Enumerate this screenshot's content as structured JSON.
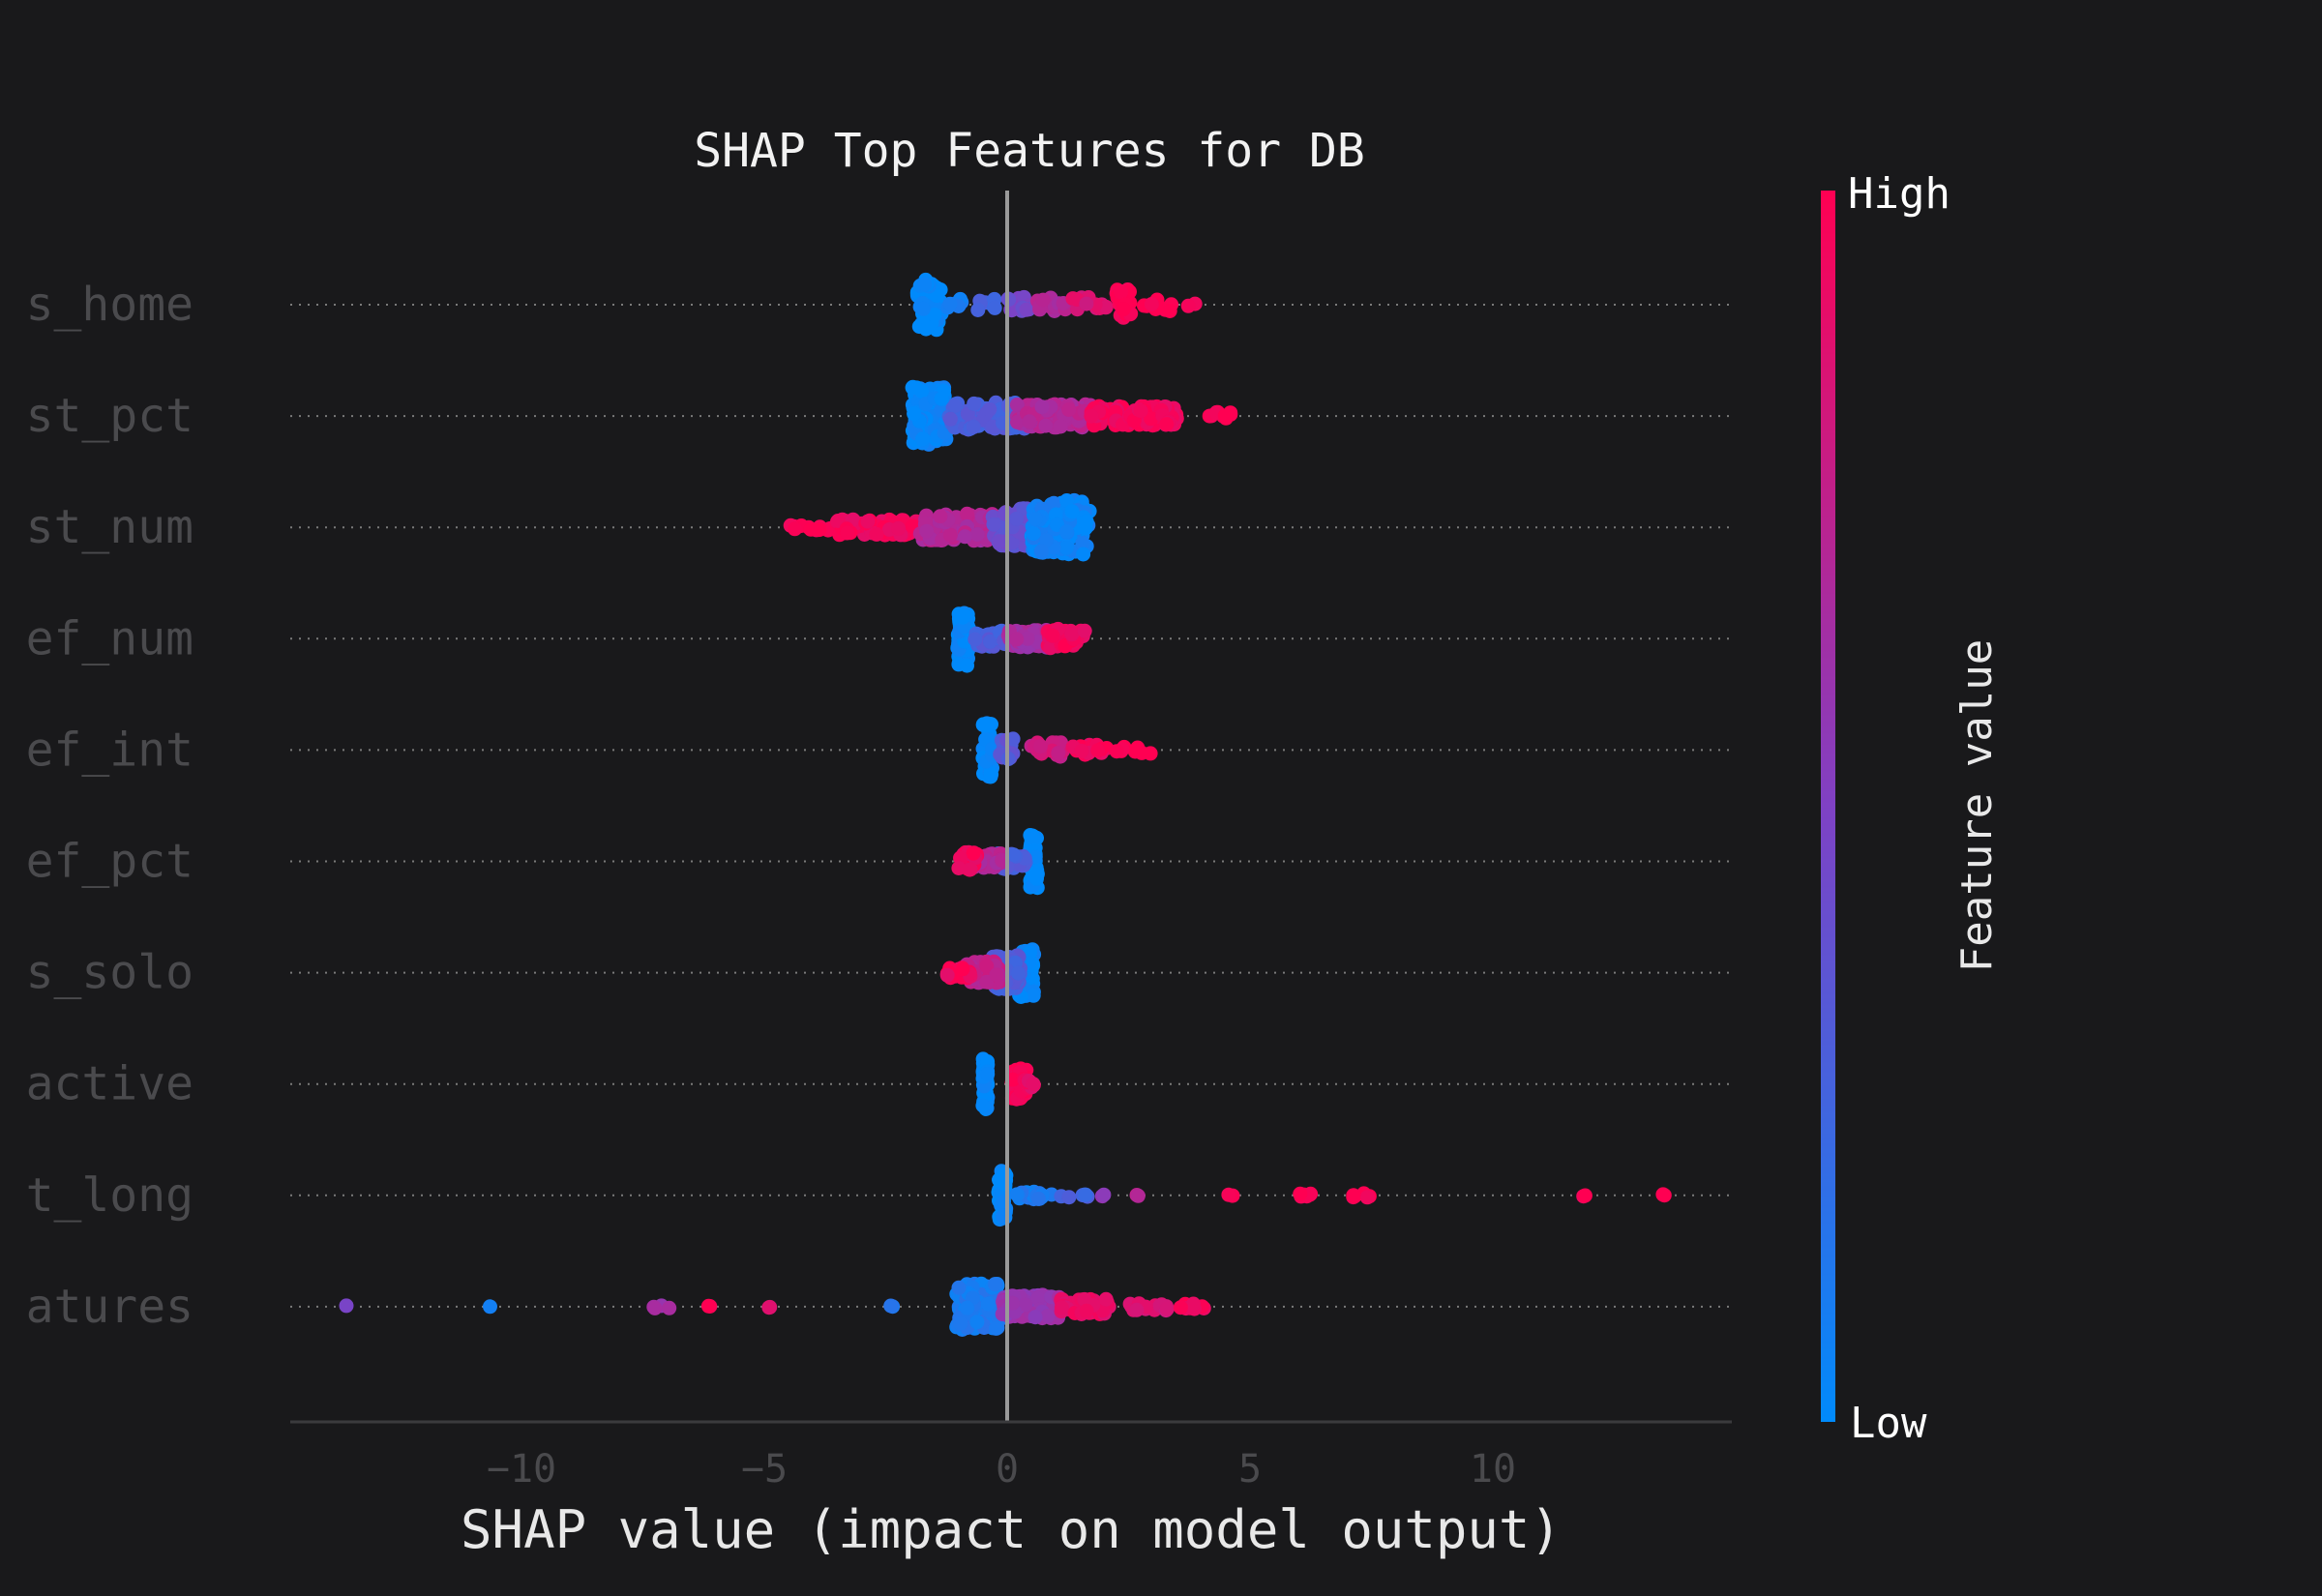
{
  "chart_data": {
    "type": "scatter",
    "subtype": "shap-beeswarm",
    "title": "SHAP Top Features for DB",
    "xlabel": "SHAP value (impact on model output)",
    "xlim": [
      -14.8,
      14.8
    ],
    "xticks": [
      -10,
      -5,
      0,
      5,
      10
    ],
    "xtick_labels": [
      "−10",
      "−5",
      "0",
      "5",
      "10"
    ],
    "feature_labels_visible": [
      "s_home",
      "st_pct",
      "st_num",
      "ef_num",
      "ef_int",
      "ef_pct",
      "s_solo",
      "active",
      "t_long",
      "atures"
    ],
    "colorbar": {
      "title": "Feature value",
      "high_label": "High",
      "low_label": "Low",
      "low_color": "#008afb",
      "high_color": "#ff0052"
    },
    "rows": [
      {
        "label": "s_home",
        "clusters": [
          {
            "c": -1.6,
            "w": 0.25,
            "h": 26,
            "n": 60,
            "v": 0.0
          },
          {
            "c": -1.1,
            "w": 0.25,
            "h": 6,
            "n": 8,
            "v": 0.1
          },
          {
            "c": -0.5,
            "w": 0.25,
            "h": 6,
            "n": 8,
            "v": 0.25
          },
          {
            "c": 0.2,
            "w": 0.3,
            "h": 8,
            "n": 12,
            "v": 0.45
          },
          {
            "c": 0.9,
            "w": 0.3,
            "h": 8,
            "n": 12,
            "v": 0.7
          },
          {
            "c": 1.7,
            "w": 0.35,
            "h": 8,
            "n": 14,
            "v": 0.85
          },
          {
            "c": 2.4,
            "w": 0.15,
            "h": 16,
            "n": 25,
            "v": 1.0
          },
          {
            "c": 3.1,
            "w": 0.3,
            "h": 7,
            "n": 10,
            "v": 1.0
          },
          {
            "c": 3.8,
            "w": 0.1,
            "h": 2,
            "n": 2,
            "v": 1.0
          }
        ]
      },
      {
        "label": "st_pct",
        "clusters": [
          {
            "c": -1.6,
            "w": 0.35,
            "h": 30,
            "n": 130,
            "v": 0.02
          },
          {
            "c": -0.4,
            "w": 0.8,
            "h": 14,
            "n": 110,
            "v": 0.3
          },
          {
            "c": 1.0,
            "w": 0.8,
            "h": 12,
            "n": 120,
            "v": 0.7
          },
          {
            "c": 2.6,
            "w": 0.9,
            "h": 10,
            "n": 110,
            "v": 0.95
          },
          {
            "c": 4.3,
            "w": 0.4,
            "h": 4,
            "n": 10,
            "v": 1.0
          }
        ]
      },
      {
        "label": "st_num",
        "clusters": [
          {
            "c": -4.0,
            "w": 0.5,
            "h": 3,
            "n": 14,
            "v": 1.0
          },
          {
            "c": -2.6,
            "w": 0.9,
            "h": 8,
            "n": 80,
            "v": 0.95
          },
          {
            "c": -1.0,
            "w": 0.8,
            "h": 14,
            "n": 110,
            "v": 0.7
          },
          {
            "c": 0.2,
            "w": 0.5,
            "h": 20,
            "n": 110,
            "v": 0.4
          },
          {
            "c": 1.1,
            "w": 0.6,
            "h": 28,
            "n": 140,
            "v": 0.05
          }
        ]
      },
      {
        "label": "ef_num",
        "clusters": [
          {
            "c": -0.9,
            "w": 0.12,
            "h": 28,
            "n": 60,
            "v": 0.0
          },
          {
            "c": -0.3,
            "w": 0.4,
            "h": 8,
            "n": 40,
            "v": 0.3
          },
          {
            "c": 0.5,
            "w": 0.5,
            "h": 9,
            "n": 60,
            "v": 0.65
          },
          {
            "c": 1.2,
            "w": 0.4,
            "h": 10,
            "n": 50,
            "v": 0.95
          }
        ]
      },
      {
        "label": "ef_int",
        "clusters": [
          {
            "c": -0.4,
            "w": 0.1,
            "h": 28,
            "n": 40,
            "v": 0.0
          },
          {
            "c": 0.0,
            "w": 0.15,
            "h": 12,
            "n": 20,
            "v": 0.35
          },
          {
            "c": 0.8,
            "w": 0.35,
            "h": 8,
            "n": 20,
            "v": 0.8
          },
          {
            "c": 1.7,
            "w": 0.35,
            "h": 6,
            "n": 15,
            "v": 0.95
          },
          {
            "c": 2.6,
            "w": 0.35,
            "h": 4,
            "n": 8,
            "v": 1.0
          }
        ]
      },
      {
        "label": "ef_pct",
        "clusters": [
          {
            "c": 0.55,
            "w": 0.08,
            "h": 28,
            "n": 50,
            "v": 0.0
          },
          {
            "c": 0.1,
            "w": 0.3,
            "h": 8,
            "n": 40,
            "v": 0.3
          },
          {
            "c": -0.4,
            "w": 0.3,
            "h": 8,
            "n": 40,
            "v": 0.7
          },
          {
            "c": -0.8,
            "w": 0.2,
            "h": 10,
            "n": 20,
            "v": 0.95
          }
        ]
      },
      {
        "label": "s_solo",
        "clusters": [
          {
            "c": 0.4,
            "w": 0.15,
            "h": 26,
            "n": 60,
            "v": 0.0
          },
          {
            "c": 0.0,
            "w": 0.3,
            "h": 18,
            "n": 70,
            "v": 0.3
          },
          {
            "c": -0.5,
            "w": 0.35,
            "h": 12,
            "n": 60,
            "v": 0.75
          },
          {
            "c": -1.0,
            "w": 0.25,
            "h": 6,
            "n": 25,
            "v": 0.95
          }
        ]
      },
      {
        "label": "active",
        "clusters": [
          {
            "c": -0.45,
            "w": 0.05,
            "h": 26,
            "n": 40,
            "v": 0.0
          },
          {
            "c": 0.25,
            "w": 0.15,
            "h": 16,
            "n": 60,
            "v": 1.0
          },
          {
            "c": 0.45,
            "w": 0.1,
            "h": 5,
            "n": 10,
            "v": 0.9
          }
        ]
      },
      {
        "label": "t_long",
        "clusters": [
          {
            "c": -0.1,
            "w": 0.08,
            "h": 26,
            "n": 50,
            "v": 0.0
          },
          {
            "c": 0.5,
            "w": 0.5,
            "h": 4,
            "n": 20,
            "v": 0.1
          },
          {
            "c": 1.4,
            "w": 0.3,
            "h": 2,
            "n": 6,
            "v": 0.25
          },
          {
            "c": 2.0,
            "w": 0.05,
            "h": 1,
            "n": 2,
            "v": 0.55
          },
          {
            "c": 2.7,
            "w": 0.05,
            "h": 1,
            "n": 2,
            "v": 0.7
          },
          {
            "c": 4.6,
            "w": 0.05,
            "h": 1,
            "n": 2,
            "v": 1.0
          },
          {
            "c": 6.1,
            "w": 0.15,
            "h": 2,
            "n": 6,
            "v": 1.0
          },
          {
            "c": 7.3,
            "w": 0.2,
            "h": 2,
            "n": 6,
            "v": 1.0
          },
          {
            "c": 11.9,
            "w": 0.05,
            "h": 1,
            "n": 2,
            "v": 1.0
          },
          {
            "c": 13.5,
            "w": 0.05,
            "h": 1,
            "n": 2,
            "v": 1.0
          }
        ]
      },
      {
        "label": "atures",
        "clusters": [
          {
            "c": -13.6,
            "w": 0.05,
            "h": 1,
            "n": 1,
            "v": 0.5
          },
          {
            "c": -10.6,
            "w": 0.05,
            "h": 1,
            "n": 1,
            "v": 0.1
          },
          {
            "c": -7.1,
            "w": 0.2,
            "h": 2,
            "n": 4,
            "v": 0.65
          },
          {
            "c": -6.1,
            "w": 0.05,
            "h": 1,
            "n": 2,
            "v": 1.0
          },
          {
            "c": -4.9,
            "w": 0.05,
            "h": 1,
            "n": 2,
            "v": 0.9
          },
          {
            "c": -2.4,
            "w": 0.05,
            "h": 1,
            "n": 2,
            "v": 0.1
          },
          {
            "c": -0.6,
            "w": 0.45,
            "h": 24,
            "n": 150,
            "v": 0.1
          },
          {
            "c": 0.5,
            "w": 0.6,
            "h": 12,
            "n": 130,
            "v": 0.6
          },
          {
            "c": 1.6,
            "w": 0.5,
            "h": 8,
            "n": 80,
            "v": 0.9
          },
          {
            "c": 2.9,
            "w": 0.4,
            "h": 4,
            "n": 15,
            "v": 0.85
          },
          {
            "c": 3.8,
            "w": 0.3,
            "h": 3,
            "n": 8,
            "v": 0.95
          }
        ]
      }
    ]
  }
}
